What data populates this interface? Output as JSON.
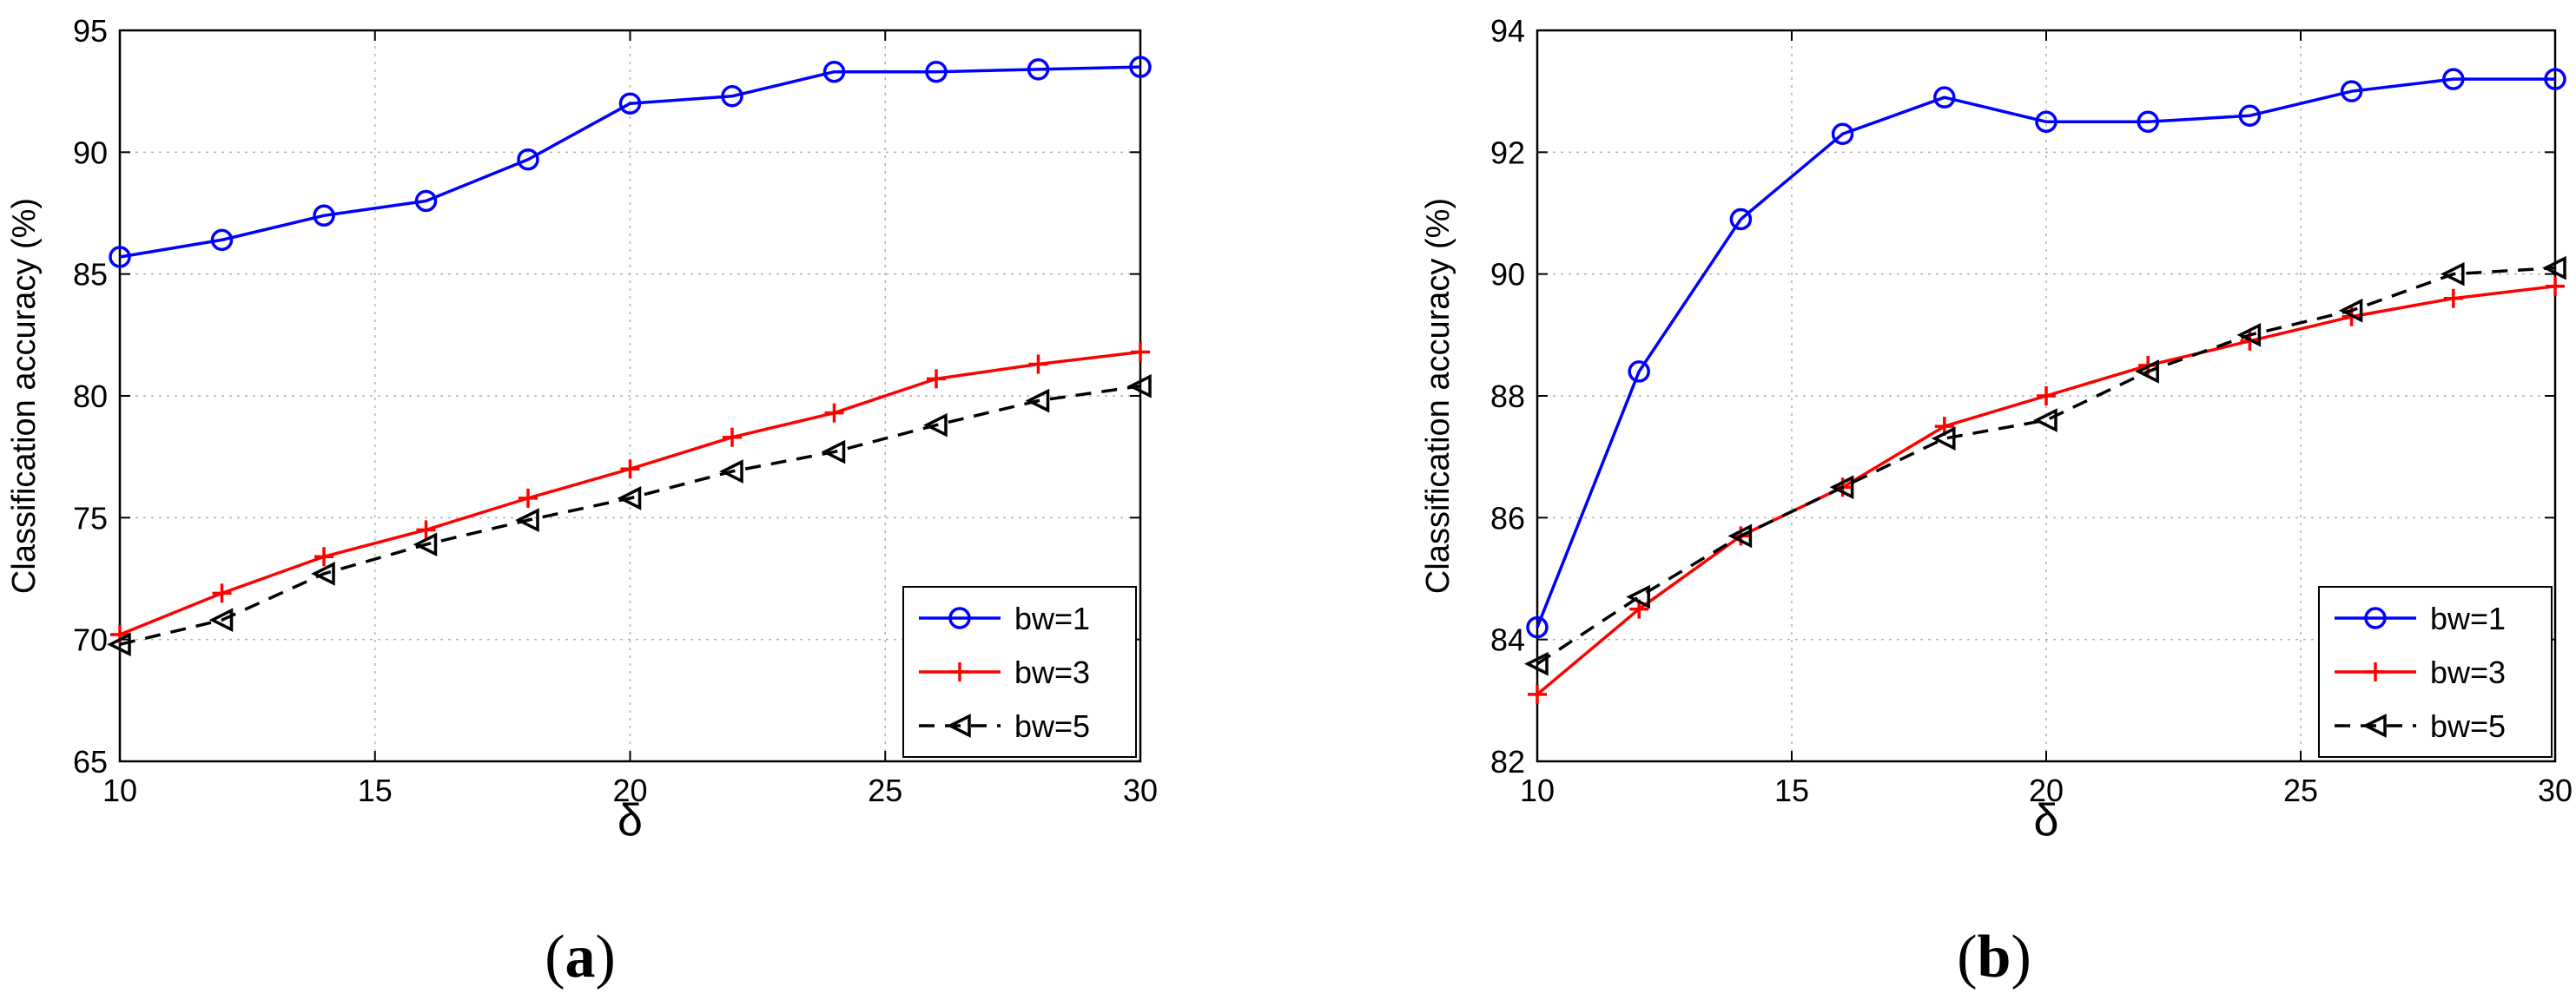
{
  "chart_data": [
    {
      "type": "line",
      "panel_label": "(a)",
      "title": "",
      "xlabel": "δ",
      "ylabel": "Classification accuracy (%)",
      "xlim": [
        10,
        30
      ],
      "ylim": [
        65,
        95
      ],
      "xticks": [
        10,
        15,
        20,
        25,
        30
      ],
      "yticks": [
        65,
        70,
        75,
        80,
        85,
        90,
        95
      ],
      "grid": true,
      "legend_position": "bottom-right",
      "x": [
        10,
        12,
        14,
        16,
        18,
        20,
        22,
        24,
        26,
        28,
        30
      ],
      "series": [
        {
          "name": "bw=1",
          "color": "#0000ff",
          "dash": "solid",
          "marker": "circle",
          "values": [
            85.7,
            86.4,
            87.4,
            88.0,
            89.7,
            92.0,
            92.3,
            93.3,
            93.3,
            93.4,
            93.5
          ]
        },
        {
          "name": "bw=3",
          "color": "#ff0000",
          "dash": "solid",
          "marker": "plus",
          "values": [
            70.2,
            71.9,
            73.4,
            74.5,
            75.8,
            77.0,
            78.3,
            79.3,
            80.7,
            81.3,
            81.8
          ]
        },
        {
          "name": "bw=5",
          "color": "#000000",
          "dash": "dashed",
          "marker": "triangle-left",
          "values": [
            69.8,
            70.8,
            72.7,
            73.9,
            74.9,
            75.8,
            76.9,
            77.7,
            78.8,
            79.8,
            80.4
          ]
        }
      ]
    },
    {
      "type": "line",
      "panel_label": "(b)",
      "title": "",
      "xlabel": "δ",
      "ylabel": "Classification accuracy (%)",
      "xlim": [
        10,
        30
      ],
      "ylim": [
        82,
        94
      ],
      "xticks": [
        10,
        15,
        20,
        25,
        30
      ],
      "yticks": [
        82,
        84,
        86,
        88,
        90,
        92,
        94
      ],
      "grid": true,
      "legend_position": "bottom-right",
      "x": [
        10,
        12,
        14,
        16,
        18,
        20,
        22,
        24,
        26,
        28,
        30
      ],
      "series": [
        {
          "name": "bw=1",
          "color": "#0000ff",
          "dash": "solid",
          "marker": "circle",
          "values": [
            84.2,
            88.4,
            90.9,
            92.3,
            92.9,
            92.5,
            92.5,
            92.6,
            93.0,
            93.2,
            93.2
          ]
        },
        {
          "name": "bw=3",
          "color": "#ff0000",
          "dash": "solid",
          "marker": "plus",
          "values": [
            83.1,
            84.5,
            85.7,
            86.5,
            87.5,
            88.0,
            88.5,
            88.9,
            89.3,
            89.6,
            89.8
          ]
        },
        {
          "name": "bw=5",
          "color": "#000000",
          "dash": "dashed",
          "marker": "triangle-left",
          "values": [
            83.6,
            84.7,
            85.7,
            86.5,
            87.3,
            87.6,
            88.4,
            89.0,
            89.4,
            90.0,
            90.1
          ]
        }
      ]
    }
  ]
}
